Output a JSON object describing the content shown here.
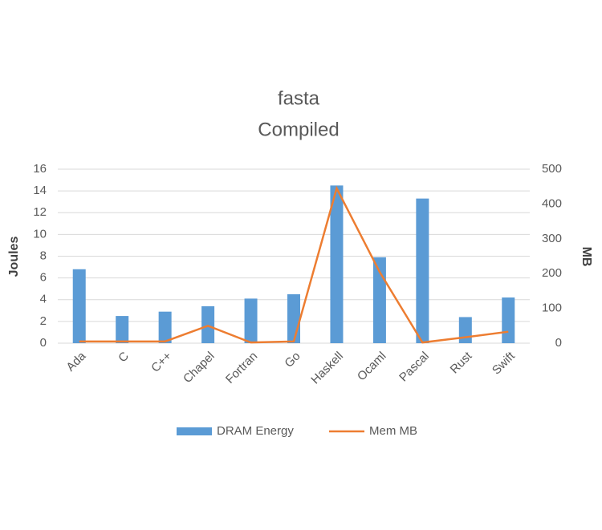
{
  "chart_data": {
    "type": "bar_line",
    "title": "fasta",
    "subtitle": "Compiled",
    "y_label": "Joules",
    "y2_label": "MB",
    "categories": [
      "Ada",
      "C",
      "C++",
      "Chapel",
      "Fortran",
      "Go",
      "Haskell",
      "Ocaml",
      "Pascal",
      "Rust",
      "Swift"
    ],
    "series": [
      {
        "name": "DRAM Energy",
        "type": "bar",
        "color": "#5b9bd5",
        "values": [
          6.8,
          2.5,
          2.9,
          3.4,
          4.1,
          4.5,
          14.5,
          7.9,
          13.3,
          2.4,
          4.2
        ]
      },
      {
        "name": "Mem MB",
        "type": "line",
        "axis": "y2",
        "color": "#ed7d31",
        "values": [
          5,
          5,
          5,
          50,
          2,
          5,
          445,
          205,
          2,
          17,
          33
        ]
      }
    ],
    "ylim": [
      0,
      16
    ],
    "yticks": [
      0,
      2,
      4,
      6,
      8,
      10,
      12,
      14,
      16
    ],
    "y2lim": [
      0,
      500
    ],
    "y2ticks": [
      0,
      100,
      200,
      300,
      400,
      500
    ],
    "grid": true,
    "legend": "bottom"
  }
}
